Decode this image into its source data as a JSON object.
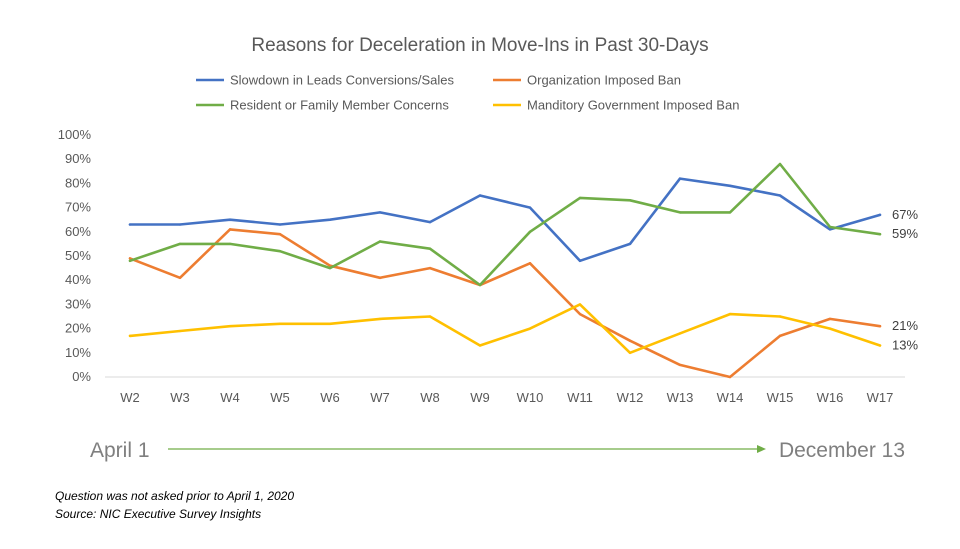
{
  "chart_data": {
    "type": "line",
    "title": "Reasons for Deceleration in Move-Ins in Past 30-Days",
    "xlabel": "",
    "ylabel": "",
    "categories": [
      "W2",
      "W3",
      "W4",
      "W5",
      "W6",
      "W7",
      "W8",
      "W9",
      "W10",
      "W11",
      "W12",
      "W13",
      "W14",
      "W15",
      "W16",
      "W17"
    ],
    "y_ticks": [
      "0%",
      "10%",
      "20%",
      "30%",
      "40%",
      "50%",
      "60%",
      "70%",
      "80%",
      "90%",
      "100%"
    ],
    "ylim": [
      0,
      100
    ],
    "grid": false,
    "legend_position": "top",
    "series": [
      {
        "name": "Slowdown in Leads Conversions/Sales",
        "color": "#4472c4",
        "values": [
          63,
          63,
          65,
          63,
          65,
          68,
          64,
          75,
          70,
          48,
          55,
          82,
          79,
          75,
          61,
          67
        ],
        "end_label": "67%"
      },
      {
        "name": "Organization Imposed Ban",
        "color": "#ed7d31",
        "values": [
          49,
          41,
          61,
          59,
          46,
          41,
          45,
          38,
          47,
          26,
          15,
          5,
          0,
          17,
          24,
          21
        ],
        "end_label": "21%"
      },
      {
        "name": "Resident or Family Member Concerns",
        "color": "#70ad47",
        "values": [
          48,
          55,
          55,
          52,
          45,
          56,
          53,
          38,
          60,
          74,
          73,
          68,
          68,
          88,
          62,
          59
        ],
        "end_label": "59%"
      },
      {
        "name": "Manditory Government Imposed Ban",
        "color": "#ffc000",
        "values": [
          17,
          19,
          21,
          22,
          22,
          24,
          25,
          13,
          20,
          30,
          10,
          18,
          26,
          25,
          20,
          13
        ],
        "end_label": "13%"
      }
    ]
  },
  "timeline": {
    "start_label": "April 1",
    "end_label": "December 13",
    "arrow_color": "#70ad47"
  },
  "notes": {
    "line1": "Question was not asked prior to April 1, 2020",
    "line2": "Source: NIC Executive Survey Insights"
  }
}
